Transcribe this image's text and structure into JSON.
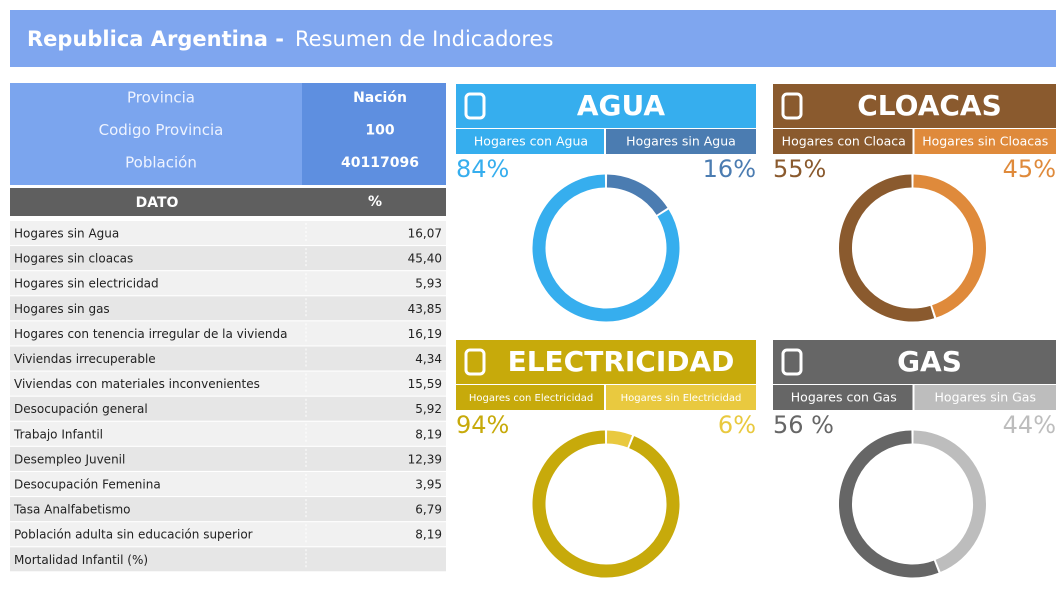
{
  "header": {
    "title_bold": "Republica Argentina -",
    "title": "Resumen de Indicadores"
  },
  "info": [
    [
      "Provincia",
      "Nación"
    ],
    [
      "Codigo Provincia",
      "100"
    ],
    [
      "Población",
      "40117096"
    ]
  ],
  "table": {
    "columns": [
      "DATO",
      "%"
    ],
    "rows": [
      [
        "Hogares sin Agua",
        "16,07"
      ],
      [
        "Hogares sin cloacas",
        "45,40"
      ],
      [
        "Hogares sin electricidad",
        "5,93"
      ],
      [
        "Hogares sin gas",
        "43,85"
      ],
      [
        "Hogares con tenencia irregular de la vivienda",
        "16,19"
      ],
      [
        "Viviendas irrecuperable",
        "4,34"
      ],
      [
        "Viviendas con materiales inconvenientes",
        "15,59"
      ],
      [
        "Desocupación general",
        "5,92"
      ],
      [
        "Trabajo Infantil",
        "8,19"
      ],
      [
        "Desempleo Juvenil",
        "12,39"
      ],
      [
        "Desocupación Femenina",
        "3,95"
      ],
      [
        "Tasa Analfabetismo",
        "6,79"
      ],
      [
        "Población adulta  sin educación superior",
        "8,19"
      ],
      [
        "Mortalidad Infantil (%)"
      ]
    ]
  },
  "chart_data": [
    {
      "type": "pie",
      "title": "AGUA",
      "categories": [
        "Hogares con Agua",
        "Hogares sin Agua"
      ],
      "values": [
        84,
        16
      ],
      "value_labels": [
        "84%",
        "16%"
      ],
      "colors": [
        "#36aeee",
        "#4b7cb1"
      ]
    },
    {
      "type": "pie",
      "title": "CLOACAS",
      "categories": [
        "Hogares con Cloaca",
        "Hogares sin Cloacas"
      ],
      "values": [
        55,
        45
      ],
      "value_labels": [
        "55%",
        "45%"
      ],
      "colors": [
        "#8a5a2e",
        "#df8a3b"
      ]
    },
    {
      "type": "pie",
      "title": "ELECTRICIDAD",
      "categories": [
        "Hogares con Electricidad",
        "Hogares sin Electricidad"
      ],
      "values": [
        94,
        6
      ],
      "value_labels": [
        "94%",
        "6%"
      ],
      "colors": [
        "#c7aa0b",
        "#e9c93f"
      ]
    },
    {
      "type": "pie",
      "title": "GAS",
      "categories": [
        "Hogares con Gas",
        "Hogares sin Gas"
      ],
      "values": [
        56,
        44
      ],
      "value_labels": [
        "56 %",
        "44%"
      ],
      "colors": [
        "#666666",
        "#bdbdbd"
      ]
    }
  ]
}
